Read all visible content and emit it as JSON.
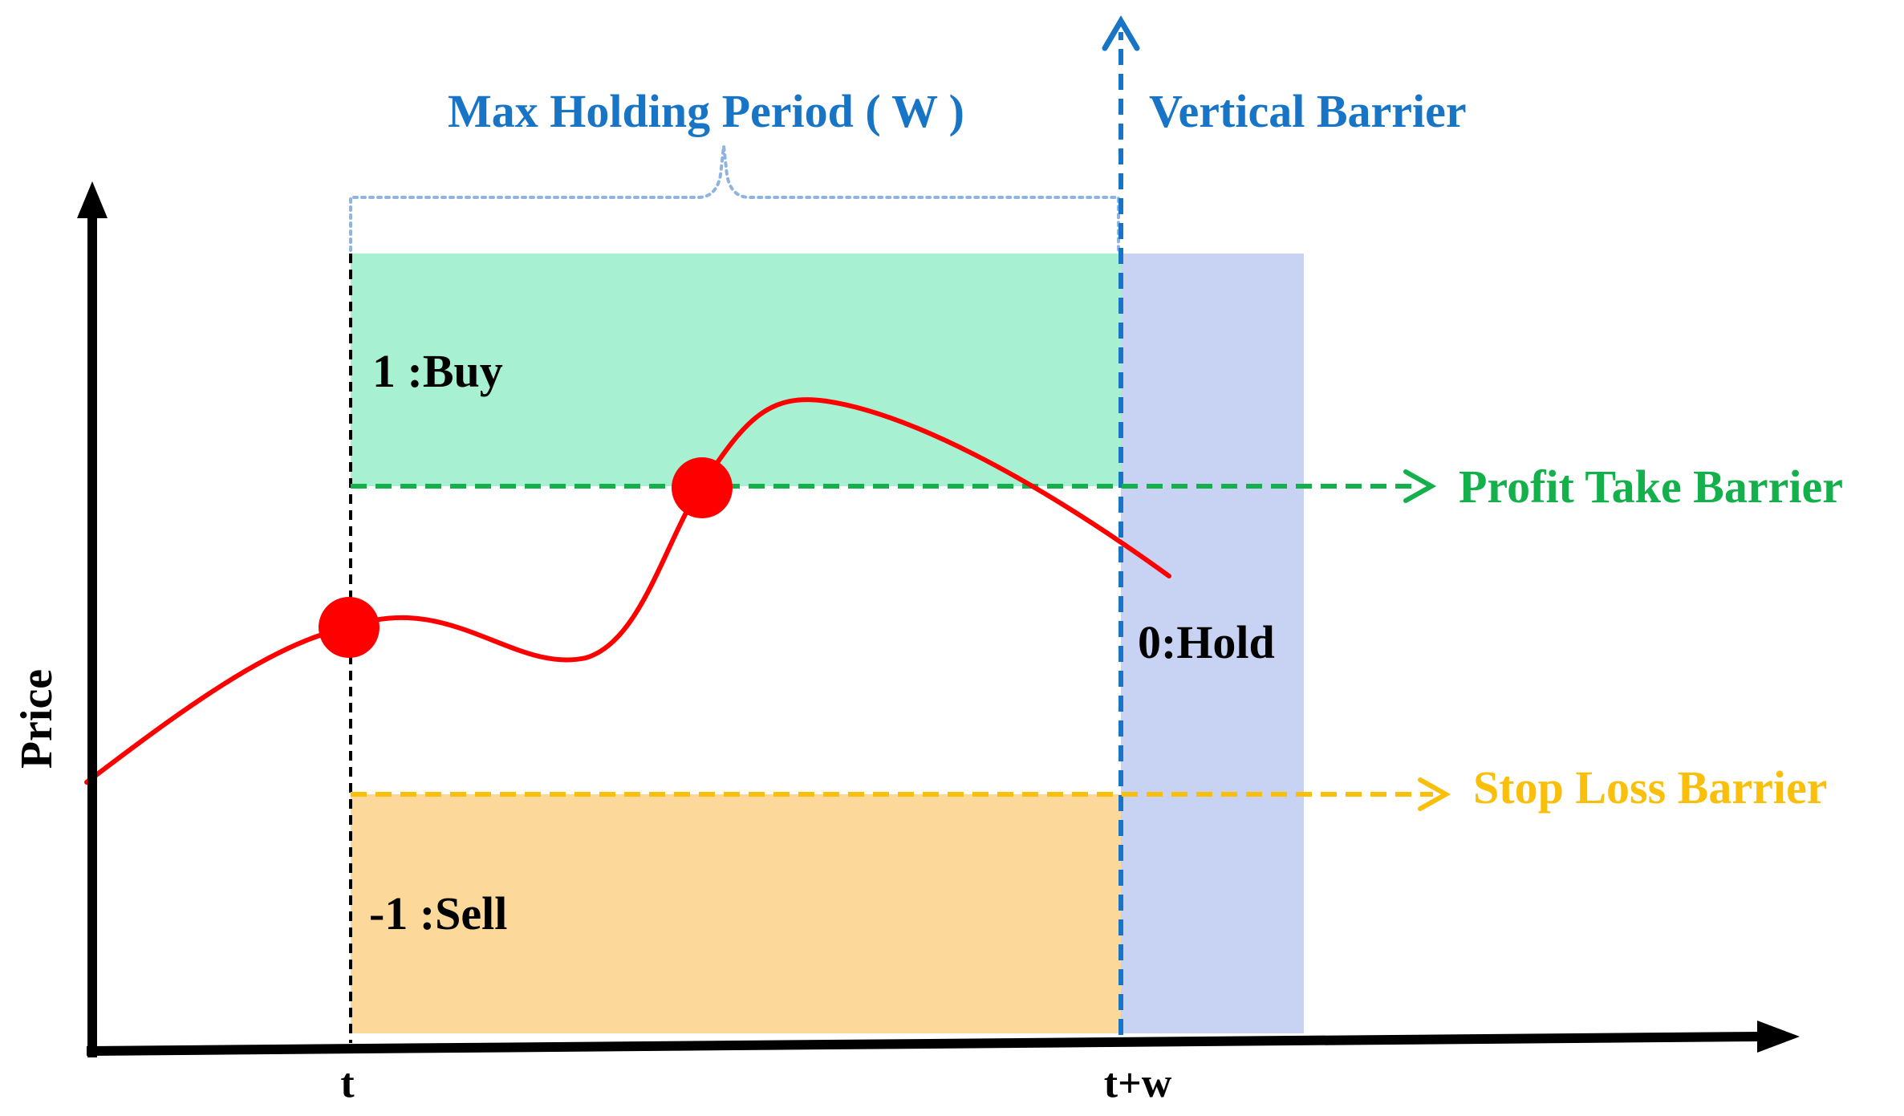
{
  "labels": {
    "y_axis": "Price",
    "x_tick_start": "t",
    "x_tick_end": "t+w",
    "max_holding_period": "Max Holding Period ( W )",
    "vertical_barrier": "Vertical Barrier",
    "profit_take_barrier": "Profit Take Barrier",
    "stop_loss_barrier": "Stop Loss Barrier",
    "buy_zone": "1 :Buy",
    "hold_zone": "0:Hold",
    "sell_zone": "-1 :Sell"
  },
  "colors": {
    "axis": "#000000",
    "price_curve": "#ff0000",
    "event_point": "#ff0000",
    "buy_zone": "#a8f0d2",
    "sell_zone": "#fcd89a",
    "hold_zone": "#c8d2f2",
    "profit_take": "#13b04b",
    "stop_loss": "#f9bf0a",
    "vertical_barrier": "#1874c4",
    "holding_bracket": "#8fb4e0",
    "text_dark": "#000000"
  }
}
